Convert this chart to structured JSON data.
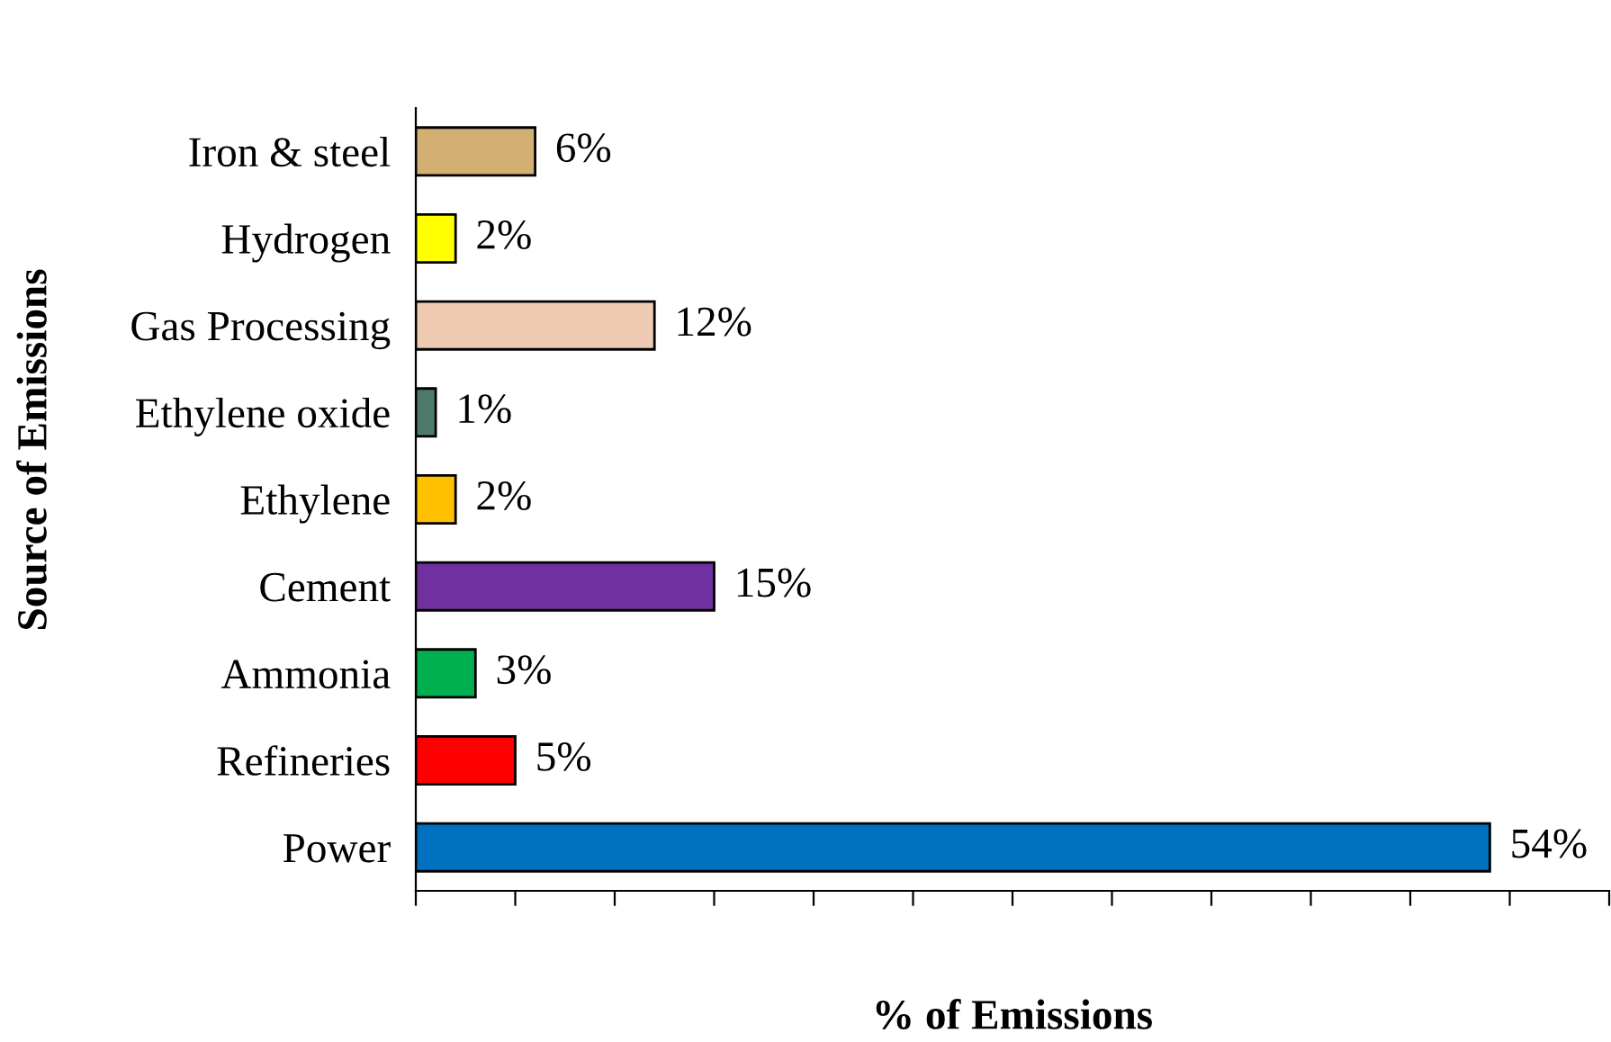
{
  "chart_data": {
    "type": "bar",
    "orientation": "horizontal",
    "xlabel": "% of Emissions",
    "ylabel": "Source of Emissions",
    "categories": [
      "Iron & steel",
      "Hydrogen",
      "Gas Processing",
      "Ethylene oxide",
      "Ethylene",
      "Cement",
      "Ammonia",
      "Refineries",
      "Power"
    ],
    "values": [
      6,
      2,
      12,
      1,
      2,
      15,
      3,
      5,
      54
    ],
    "value_labels": [
      "6%",
      "2%",
      "12%",
      "1%",
      "2%",
      "15%",
      "3%",
      "5%",
      "54%"
    ],
    "colors": [
      "#d2b074",
      "#ffff00",
      "#f0cbb4",
      "#4e7a6e",
      "#ffc000",
      "#7030a0",
      "#00b050",
      "#ff0000",
      "#0070c0"
    ],
    "xlim": [
      0,
      60
    ],
    "xticks": [
      {
        "value": 0,
        "label": null
      },
      {
        "value": 5,
        "label": null
      },
      {
        "value": 10,
        "label": null
      },
      {
        "value": 15,
        "label": null
      },
      {
        "value": 20,
        "label": null
      },
      {
        "value": 25,
        "label": null
      },
      {
        "value": 30,
        "label": null
      },
      {
        "value": 35,
        "label": null
      },
      {
        "value": 40,
        "label": null
      },
      {
        "value": 45,
        "label": null
      },
      {
        "value": 50,
        "label": null
      },
      {
        "value": 55,
        "label": null
      },
      {
        "value": 60,
        "label": null
      }
    ],
    "tick_labels": "y"
  }
}
